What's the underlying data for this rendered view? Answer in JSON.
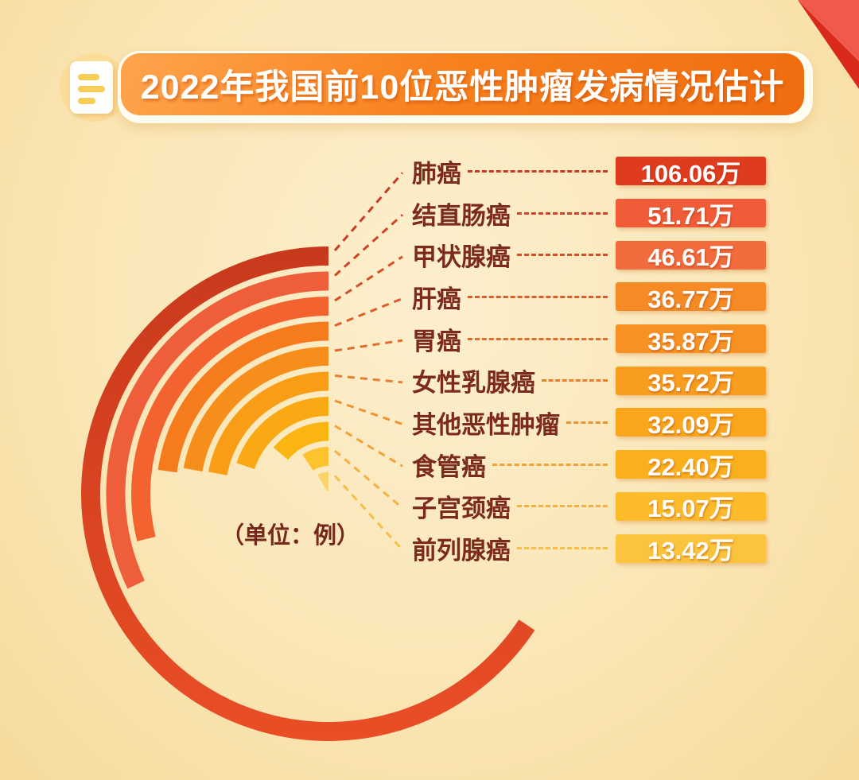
{
  "header": {
    "title": "2022年我国前10位恶性肿瘤发病情况估计",
    "doc_icon": "document-icon",
    "corner_ribbon": "red-corner-ribbon"
  },
  "unit_note": "（单位：例）",
  "colors": {
    "background_center": "#FCEFCE",
    "background_edge": "#F6DA9B",
    "banner_gradient_start": "#FFA44D",
    "banner_gradient_end": "#EF6C0F",
    "label_text": "#7B2A1C",
    "badge_text": "#FFFFFF",
    "ribbon_light": "#F05A4C",
    "ribbon_dark": "#D8291B"
  },
  "chart_data": {
    "type": "bar",
    "layout": "radial-arc, bars start at 12 o'clock and sweep counterclockwise, largest outermost",
    "title": "2022年我国前10位恶性肿瘤发病情况估计",
    "unit_note": "（单位：例）",
    "unit": "万 (10k cases)",
    "categories": [
      "肺癌",
      "结直肠癌",
      "甲状腺癌",
      "肝癌",
      "胃癌",
      "女性乳腺癌",
      "其他恶性肿瘤",
      "食管癌",
      "子宫颈癌",
      "前列腺癌"
    ],
    "values": [
      106.06,
      51.71,
      46.61,
      36.77,
      35.87,
      35.72,
      32.09,
      22.4,
      15.07,
      13.42
    ],
    "value_labels": [
      "106.06万",
      "51.71万",
      "46.61万",
      "36.77万",
      "35.87万",
      "35.72万",
      "32.09万",
      "22.40万",
      "15.07万",
      "13.42万"
    ],
    "angle_deg_per_unit": 2.23,
    "arc_colors": [
      "#D4401F",
      "#EE5E3B",
      "#F2632F",
      "#F57B1D",
      "#F68E1B",
      "#F99D16",
      "#FAA813",
      "#FBB513",
      "#FCC32E",
      "#FAD36A"
    ],
    "arc1_gradient": [
      "#C8391C",
      "#E94E26"
    ],
    "badge_colors": [
      "#DF3B1E",
      "#F05B38",
      "#F26B3D",
      "#F68B26",
      "#F69224",
      "#F89D20",
      "#F9A61D",
      "#FAB01D",
      "#FBBB2B",
      "#FBC43C"
    ],
    "line_colors": [
      "#C93A25",
      "#CE4427",
      "#D44E28",
      "#DC5D2A",
      "#E26C2B",
      "#E97E2D",
      "#EE9131",
      "#F2A338",
      "#F4B142",
      "#F6BE4B"
    ],
    "legend_position": "right",
    "grid": false
  }
}
